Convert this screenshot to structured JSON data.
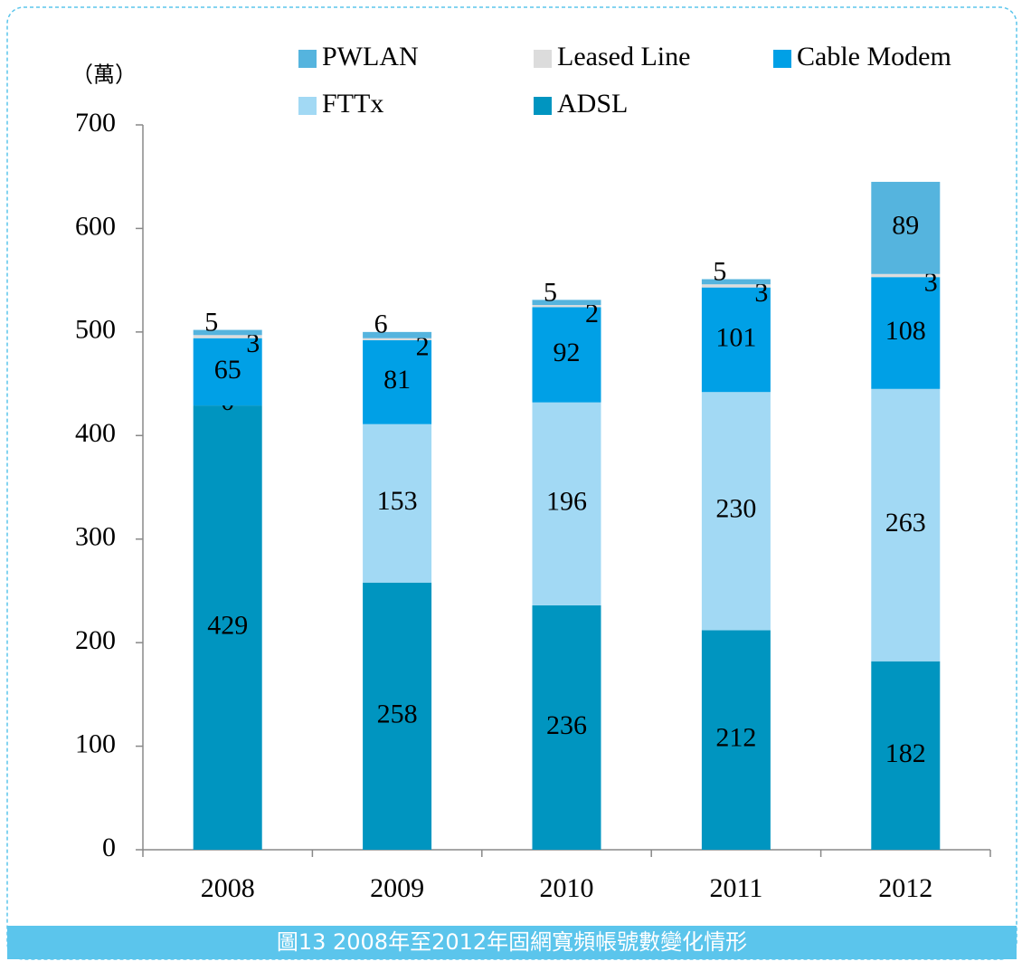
{
  "chart_data": {
    "type": "stacked_bar",
    "unit_label": "（萬）",
    "caption": "圖13  2008年至2012年固網寬頻帳號數變化情形",
    "categories": [
      "2008",
      "2009",
      "2010",
      "2011",
      "2012"
    ],
    "series": [
      {
        "name": "PWLAN",
        "color": "#55b4de",
        "values": [
          5,
          6,
          5,
          5,
          89
        ]
      },
      {
        "name": "Leased Line",
        "color": "#dcdcdc",
        "values": [
          3,
          2,
          2,
          3,
          3
        ]
      },
      {
        "name": "Cable Modem",
        "color": "#00a0e6",
        "values": [
          65,
          81,
          92,
          101,
          108
        ]
      },
      {
        "name": "FTTx",
        "color": "#a2d9f4",
        "values": [
          0,
          153,
          196,
          230,
          263
        ]
      },
      {
        "name": "ADSL",
        "color": "#0095c0",
        "values": [
          429,
          258,
          236,
          212,
          182
        ]
      }
    ],
    "ylim": [
      0,
      700
    ],
    "yticks": [
      0,
      100,
      200,
      300,
      400,
      500,
      600,
      700
    ]
  }
}
